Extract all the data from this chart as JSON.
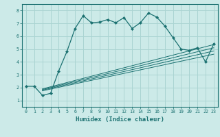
{
  "xlabel": "Humidex (Indice chaleur)",
  "bg_color": "#cceae8",
  "grid_color": "#aad4d2",
  "line_color": "#1a7070",
  "xlim": [
    -0.5,
    23.5
  ],
  "ylim": [
    0.5,
    8.5
  ],
  "xticks": [
    0,
    1,
    2,
    3,
    4,
    5,
    6,
    7,
    8,
    9,
    10,
    11,
    12,
    13,
    14,
    15,
    16,
    17,
    18,
    19,
    20,
    21,
    22,
    23
  ],
  "yticks": [
    1,
    2,
    3,
    4,
    5,
    6,
    7,
    8
  ],
  "main_x": [
    0,
    1,
    2,
    3,
    4,
    5,
    6,
    7,
    8,
    9,
    10,
    11,
    12,
    13,
    14,
    15,
    16,
    17,
    18,
    19,
    20,
    21,
    22,
    23
  ],
  "main_y": [
    2.1,
    2.1,
    1.4,
    1.55,
    3.3,
    4.8,
    6.6,
    7.6,
    7.05,
    7.1,
    7.3,
    7.05,
    7.45,
    6.6,
    7.05,
    7.8,
    7.5,
    6.8,
    5.9,
    5.0,
    4.9,
    5.1,
    4.0,
    5.4
  ],
  "ref_lines": [
    {
      "x": [
        2,
        23
      ],
      "y": [
        1.9,
        5.35
      ]
    },
    {
      "x": [
        2,
        23
      ],
      "y": [
        1.85,
        5.1
      ]
    },
    {
      "x": [
        2,
        23
      ],
      "y": [
        1.8,
        4.85
      ]
    },
    {
      "x": [
        2,
        23
      ],
      "y": [
        1.75,
        4.6
      ]
    }
  ],
  "xlabel_fontsize": 6.5,
  "tick_fontsize": 4.8
}
